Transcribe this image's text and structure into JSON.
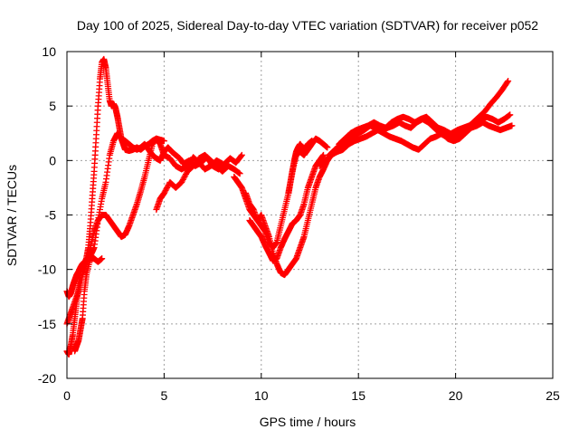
{
  "chart_data": {
    "type": "scatter",
    "title": "Day 100 of 2025, Sidereal Day-to-day VTEC variation (SDTVAR) for receiver p052",
    "xlabel": "GPS time / hours",
    "ylabel": "SDTVAR / TECUs",
    "xlim": [
      0,
      25
    ],
    "ylim": [
      -20,
      10
    ],
    "xticks": [
      0,
      5,
      10,
      15,
      20,
      25
    ],
    "yticks": [
      -20,
      -15,
      -10,
      -5,
      0,
      5,
      10
    ],
    "grid": true,
    "legend": "none",
    "marker": "plus",
    "color": "#ff0000",
    "series": [
      {
        "x": [
          0.0,
          0.1,
          0.2,
          0.3,
          0.4,
          0.5,
          0.6,
          0.7,
          0.8,
          0.9,
          1.0,
          1.1,
          1.2,
          1.3,
          1.4,
          1.5,
          1.6,
          1.7,
          1.8,
          1.9,
          2.0,
          2.1,
          2.2,
          2.3,
          2.4,
          2.5,
          2.6,
          2.7,
          2.8,
          2.9,
          3.0,
          3.2,
          3.4,
          3.6,
          3.8,
          4.0,
          4.2,
          4.4,
          4.6,
          4.8,
          5.0
        ],
        "y": [
          -12.0,
          -12.5,
          -12.2,
          -11.5,
          -11.0,
          -10.5,
          -10.2,
          -9.8,
          -9.5,
          -9.5,
          -9.0,
          -8.0,
          -6.0,
          -3.5,
          -1.0,
          2.0,
          5.0,
          7.5,
          9.0,
          9.3,
          8.5,
          7.0,
          5.5,
          5.0,
          5.2,
          4.8,
          4.0,
          3.0,
          2.0,
          1.5,
          1.0,
          0.9,
          1.0,
          1.2,
          1.0,
          1.3,
          1.5,
          1.8,
          2.0,
          1.9,
          1.8
        ]
      },
      {
        "x": [
          0.0,
          0.1,
          0.2,
          0.3,
          0.4,
          0.5,
          0.6,
          0.7,
          0.8,
          0.9,
          1.0,
          1.2,
          1.4,
          1.6,
          1.8,
          2.0,
          2.2,
          2.4,
          2.6,
          2.8,
          3.0,
          3.2,
          3.4,
          3.6,
          3.8,
          4.0,
          4.2,
          4.4,
          4.6,
          4.8,
          5.0,
          5.2,
          5.4,
          5.6,
          5.8,
          6.0,
          6.3,
          6.6,
          6.9,
          7.2,
          7.5,
          7.8,
          8.1,
          8.4,
          8.7,
          9.0
        ],
        "y": [
          -17.5,
          -17.8,
          -17.0,
          -16.0,
          -14.5,
          -13.0,
          -11.5,
          -10.0,
          -9.5,
          -9.3,
          -9.2,
          -8.8,
          -8.0,
          -5.5,
          -3.5,
          -2.0,
          0.5,
          1.8,
          2.5,
          2.0,
          1.8,
          1.5,
          1.2,
          1.0,
          1.2,
          1.5,
          1.0,
          0.5,
          0.2,
          0.0,
          0.8,
          1.2,
          0.8,
          0.5,
          0.2,
          -0.3,
          0.0,
          -0.5,
          -0.2,
          0.3,
          -0.5,
          -0.8,
          -0.3,
          0.2,
          -0.2,
          0.5
        ]
      },
      {
        "x": [
          0.0,
          0.2,
          0.4,
          0.6,
          0.8,
          1.0,
          1.2,
          1.4,
          1.6,
          1.8,
          2.0,
          2.2,
          2.4,
          2.6,
          2.8,
          3.0,
          3.2,
          3.4,
          3.6,
          3.8,
          4.0,
          4.2,
          4.4,
          4.6,
          4.8,
          5.0,
          5.3,
          5.6,
          5.9,
          6.2,
          6.5,
          6.8,
          7.1,
          7.4,
          7.7,
          8.0
        ],
        "y": [
          -15.0,
          -14.0,
          -13.0,
          -12.0,
          -10.5,
          -9.5,
          -8.0,
          -6.5,
          -5.5,
          -5.0,
          -5.0,
          -5.5,
          -6.0,
          -6.5,
          -7.0,
          -6.8,
          -6.0,
          -5.0,
          -4.0,
          -2.8,
          -1.5,
          0.0,
          1.5,
          2.0,
          1.5,
          0.5,
          0.2,
          -0.5,
          -0.8,
          -0.5,
          0.3,
          -0.2,
          -0.8,
          -0.5,
          0.0,
          -0.3
        ]
      },
      {
        "x": [
          0.4,
          0.5,
          0.6,
          0.7,
          0.8,
          0.9,
          1.0,
          1.2,
          1.4,
          1.6,
          1.8
        ],
        "y": [
          -17.5,
          -17.0,
          -16.5,
          -15.5,
          -14.5,
          -12.0,
          -10.5,
          -9.0,
          -9.0,
          -9.3,
          -9.0
        ]
      },
      {
        "x": [
          4.6,
          4.8,
          5.0,
          5.3,
          5.6,
          5.9,
          6.2,
          6.5,
          6.8,
          7.1,
          7.4,
          7.7,
          8.0,
          8.3,
          8.6,
          8.9
        ],
        "y": [
          -4.5,
          -3.5,
          -3.0,
          -2.0,
          -2.5,
          -2.0,
          -1.0,
          -0.5,
          0.2,
          0.5,
          0.0,
          -0.5,
          -1.0,
          -0.5,
          -0.8,
          -1.2
        ]
      },
      {
        "x": [
          8.6,
          8.8,
          9.0,
          9.2,
          9.4,
          9.6,
          9.8,
          10.0,
          10.2,
          10.4,
          10.6,
          10.8,
          11.0,
          11.2,
          11.4,
          11.6,
          11.8,
          12.0,
          12.2,
          12.4,
          12.6,
          12.8,
          13.0,
          13.2,
          13.4,
          13.6,
          13.8,
          14.0,
          14.2,
          14.4,
          14.6,
          14.8,
          15.0
        ],
        "y": [
          -1.5,
          -2.0,
          -2.5,
          -3.5,
          -4.5,
          -5.0,
          -5.5,
          -5.0,
          -6.0,
          -7.0,
          -8.5,
          -9.5,
          -10.3,
          -10.5,
          -10.0,
          -9.5,
          -9.0,
          -8.0,
          -7.0,
          -5.5,
          -4.0,
          -2.5,
          -1.5,
          -0.8,
          0.0,
          0.5,
          1.0,
          1.2,
          1.5,
          2.0,
          2.2,
          2.5,
          2.8
        ]
      },
      {
        "x": [
          9.2,
          9.4,
          9.6,
          9.8,
          10.0,
          10.2,
          10.4,
          10.6,
          10.8,
          11.0,
          11.2,
          11.4,
          11.6,
          11.8,
          12.0,
          12.2,
          12.4,
          12.6,
          12.8,
          13.0,
          13.2,
          13.4
        ],
        "y": [
          -3.0,
          -4.0,
          -4.5,
          -5.5,
          -6.0,
          -6.5,
          -7.5,
          -8.0,
          -7.5,
          -6.0,
          -4.5,
          -3.0,
          -1.0,
          0.5,
          0.8,
          0.5,
          1.0,
          1.5,
          2.0,
          1.8,
          1.5,
          1.2
        ]
      },
      {
        "x": [
          9.4,
          9.6,
          9.8,
          10.0,
          10.2,
          10.4,
          10.6,
          10.8,
          11.0,
          11.2,
          11.4,
          11.6,
          11.8,
          12.0,
          12.2,
          12.4,
          12.6,
          12.8,
          13.0,
          13.2
        ],
        "y": [
          -5.5,
          -6.0,
          -6.5,
          -7.0,
          -7.8,
          -8.5,
          -9.2,
          -9.0,
          -8.0,
          -7.2,
          -6.5,
          -5.8,
          -5.5,
          -5.0,
          -4.0,
          -2.5,
          -1.5,
          -0.5,
          0.0,
          0.5
        ]
      },
      {
        "x": [
          11.4,
          11.5,
          11.6,
          11.7,
          11.8,
          11.9,
          12.0,
          12.2,
          12.4,
          12.6
        ],
        "y": [
          -3.0,
          -2.0,
          -1.0,
          0.0,
          0.8,
          1.2,
          1.5,
          1.0,
          1.5,
          1.8
        ]
      },
      {
        "x": [
          13.0,
          13.3,
          13.6,
          13.9,
          14.2,
          14.5,
          14.8,
          15.1,
          15.4,
          15.7,
          16.0,
          16.3,
          16.6,
          16.9,
          17.2,
          17.5,
          17.8,
          18.1,
          18.4,
          18.7,
          19.0,
          19.3,
          19.6,
          19.9,
          20.2,
          20.5,
          20.8,
          21.1,
          21.4,
          21.7,
          22.0,
          22.3,
          22.6,
          22.9
        ],
        "y": [
          -0.5,
          0.0,
          0.5,
          0.8,
          1.0,
          1.5,
          1.8,
          2.0,
          2.2,
          2.5,
          2.8,
          2.5,
          2.2,
          2.0,
          1.8,
          1.5,
          1.2,
          1.0,
          1.5,
          2.0,
          2.2,
          2.5,
          2.0,
          1.8,
          2.0,
          2.5,
          3.0,
          3.2,
          3.5,
          3.2,
          3.0,
          2.8,
          3.0,
          3.2
        ]
      },
      {
        "x": [
          13.5,
          13.8,
          14.1,
          14.4,
          14.7,
          15.0,
          15.3,
          15.6,
          15.9,
          16.2,
          16.5,
          16.8,
          17.1,
          17.4,
          17.7,
          18.0,
          18.3,
          18.6,
          18.9,
          19.2,
          19.5,
          19.8,
          20.1,
          20.4,
          20.7,
          21.0,
          21.3,
          21.6,
          21.9,
          22.2,
          22.5,
          22.8
        ],
        "y": [
          0.5,
          1.0,
          1.5,
          1.8,
          2.2,
          2.5,
          2.8,
          3.2,
          3.0,
          2.8,
          3.0,
          3.2,
          3.5,
          3.2,
          3.0,
          3.5,
          3.8,
          3.5,
          3.0,
          2.5,
          2.2,
          2.5,
          2.8,
          3.0,
          3.2,
          3.5,
          3.8,
          4.0,
          3.8,
          3.5,
          3.8,
          4.2
        ]
      },
      {
        "x": [
          14.0,
          14.3,
          14.6,
          14.9,
          15.2,
          15.5,
          15.8,
          16.1,
          16.4,
          16.7,
          17.0,
          17.3,
          17.6,
          17.9,
          18.2,
          18.5,
          18.8,
          19.1,
          19.4,
          19.7,
          20.0,
          20.3,
          20.6,
          20.9,
          21.2,
          21.5,
          21.8,
          22.1,
          22.4,
          22.7
        ],
        "y": [
          1.5,
          2.0,
          2.5,
          2.8,
          3.0,
          3.2,
          3.5,
          3.2,
          3.0,
          3.5,
          3.8,
          4.0,
          3.8,
          3.5,
          3.8,
          4.0,
          3.5,
          3.0,
          2.8,
          2.5,
          2.2,
          2.5,
          3.0,
          3.5,
          4.0,
          4.5,
          5.2,
          5.8,
          6.5,
          7.3
        ]
      }
    ]
  }
}
